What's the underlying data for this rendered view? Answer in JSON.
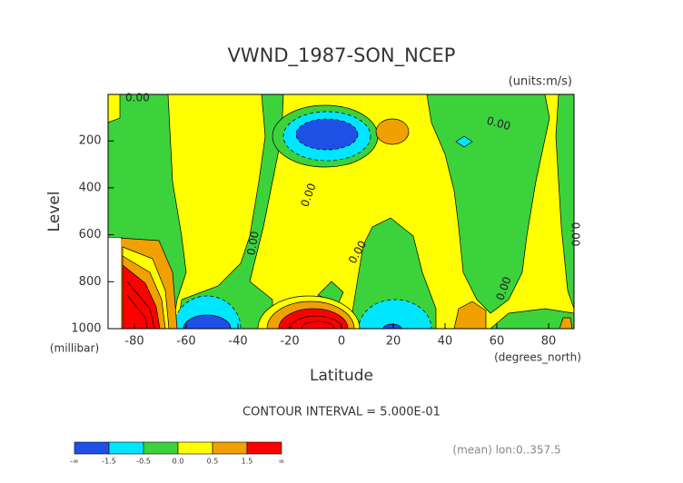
{
  "chart_data": {
    "type": "contour",
    "title": "VWND_1987-SON_NCEP",
    "units_label": "(units:m/s)",
    "y_label": "Level",
    "y_unit_label": "(millibar)",
    "x_label": "Latitude",
    "x_unit_label": "(degrees_north)",
    "contour_interval": "CONTOUR INTERVAL = 5.000E-01",
    "footnote": "(mean) lon:0..357.5",
    "xlim": [
      -90,
      90
    ],
    "xticks": [
      -80,
      -60,
      -40,
      -20,
      0,
      20,
      40,
      60,
      80
    ],
    "ylim": [
      0,
      1000
    ],
    "y_reversed": true,
    "yticks": [
      200,
      400,
      600,
      800,
      1000
    ],
    "contour_labels": [
      "0.00",
      "0.00",
      "0.00",
      "0.00",
      "0.00",
      "0.00",
      "0.00"
    ],
    "colorbar": {
      "labels": [
        "-∞",
        "-1.5",
        "-0.5",
        "0.0",
        "0.5",
        "1.5",
        "∞"
      ],
      "colors": [
        "#1e50e6",
        "#00e6ff",
        "#3cd23c",
        "#ffff00",
        "#f0a000",
        "#ff0000"
      ]
    }
  }
}
